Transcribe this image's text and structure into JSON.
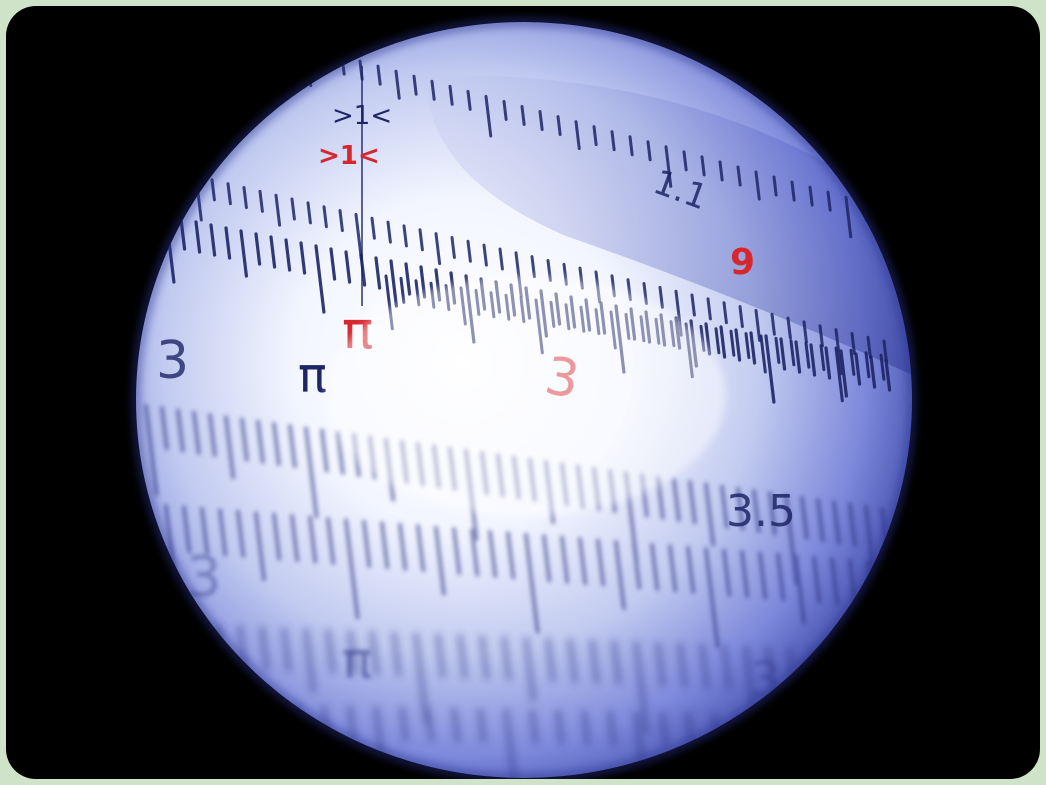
{
  "photo": {
    "alt": "",
    "colors": {
      "frame": "#cfe3c9",
      "background": "#000000",
      "sphere_highlight": "#ffffff",
      "sphere_mid": "#c7d1f4",
      "sphere_edge": "#4b57c8",
      "tick": "#1d2566",
      "red": "#d8262e",
      "navy": "#1d2566"
    },
    "labels": {
      "top_black": ">1<",
      "top_red": ">1<",
      "one_one": "1.1",
      "nine": "9",
      "pi_red": "π",
      "three_left": "3",
      "pi_left": "π",
      "three_red": "3",
      "three_five": "3.5",
      "three_bottom_left": "3",
      "pi_bottom": "π",
      "three_five_bottom": "3.5"
    }
  }
}
